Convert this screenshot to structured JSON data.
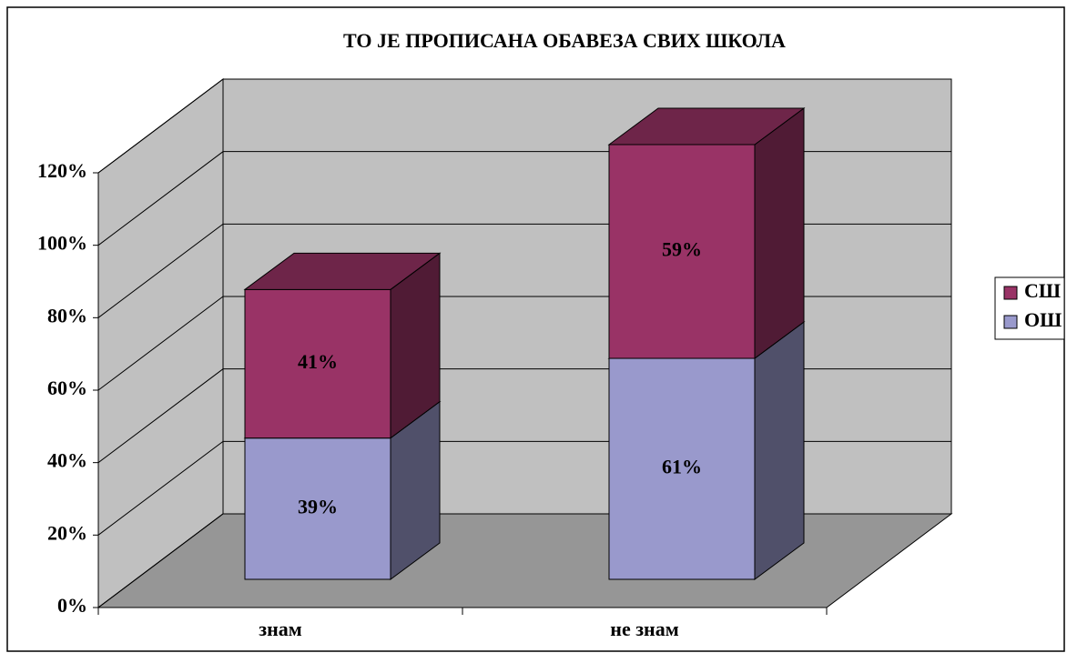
{
  "chart_data": {
    "type": "bar3d_stacked",
    "title": "ТО ЈЕ ПРОПИСАНА ОБАВЕЗА СВИХ ШКОЛА",
    "categories": [
      "знам",
      "не знам"
    ],
    "series": [
      {
        "name": "ОШ",
        "color": "#9999cc",
        "values": [
          39,
          61
        ],
        "value_labels": [
          "39%",
          "61%"
        ]
      },
      {
        "name": "СШ",
        "color": "#993366",
        "values": [
          41,
          59
        ],
        "value_labels": [
          "41%",
          "59%"
        ]
      }
    ],
    "ylim": [
      0,
      120
    ],
    "yticks": [
      {
        "value": 0,
        "label": "0%"
      },
      {
        "value": 20,
        "label": "20%"
      },
      {
        "value": 40,
        "label": "40%"
      },
      {
        "value": 60,
        "label": "60%"
      },
      {
        "value": 80,
        "label": "80%"
      },
      {
        "value": 100,
        "label": "100%"
      },
      {
        "value": 120,
        "label": "120%"
      }
    ],
    "grid": true,
    "legend": "right"
  }
}
